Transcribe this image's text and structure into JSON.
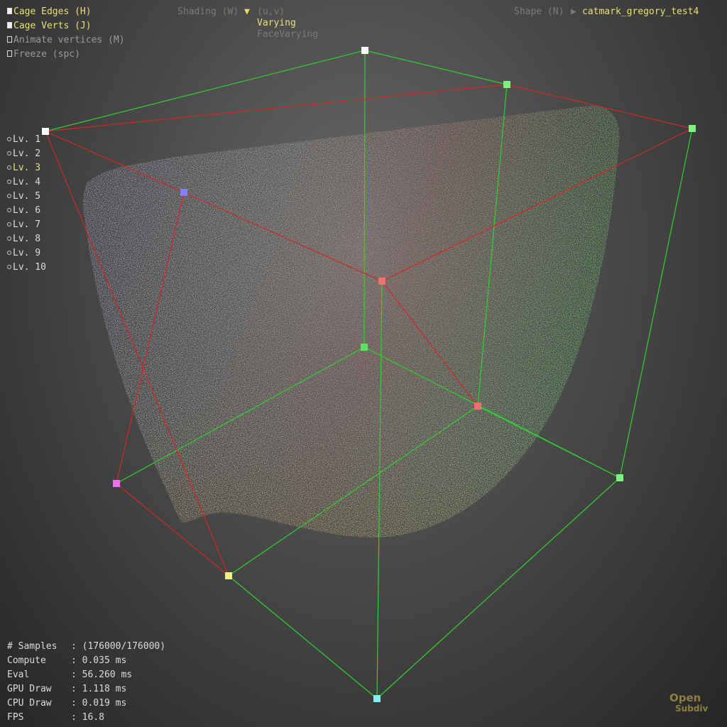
{
  "toggles": [
    {
      "label": "Cage Edges (H)"
    },
    {
      "label": "Cage Verts (J)"
    },
    {
      "label": "Animate vertices (M)"
    },
    {
      "label": "Freeze (spc)"
    }
  ],
  "shading": {
    "label": "Shading (W)",
    "options": [
      "(u,v)",
      "Varying",
      "FaceVarying"
    ]
  },
  "shape": {
    "label": "Shape (N)",
    "value": "catmark_gregory_test4"
  },
  "levels": [
    "Lv. 1",
    "Lv. 2",
    "Lv. 3",
    "Lv. 4",
    "Lv. 5",
    "Lv. 6",
    "Lv. 7",
    "Lv. 8",
    "Lv. 9",
    "Lv. 10"
  ],
  "stats": [
    [
      "# Samples",
      ": (176000/176000)"
    ],
    [
      "Compute",
      ": 0.035 ms"
    ],
    [
      "Eval",
      ": 56.260 ms"
    ],
    [
      "GPU Draw",
      ": 1.118 ms"
    ],
    [
      "CPU Draw",
      ": 0.019 ms"
    ],
    [
      "FPS",
      ": 16.8"
    ]
  ],
  "logo": [
    "Open",
    "Subdiv"
  ]
}
